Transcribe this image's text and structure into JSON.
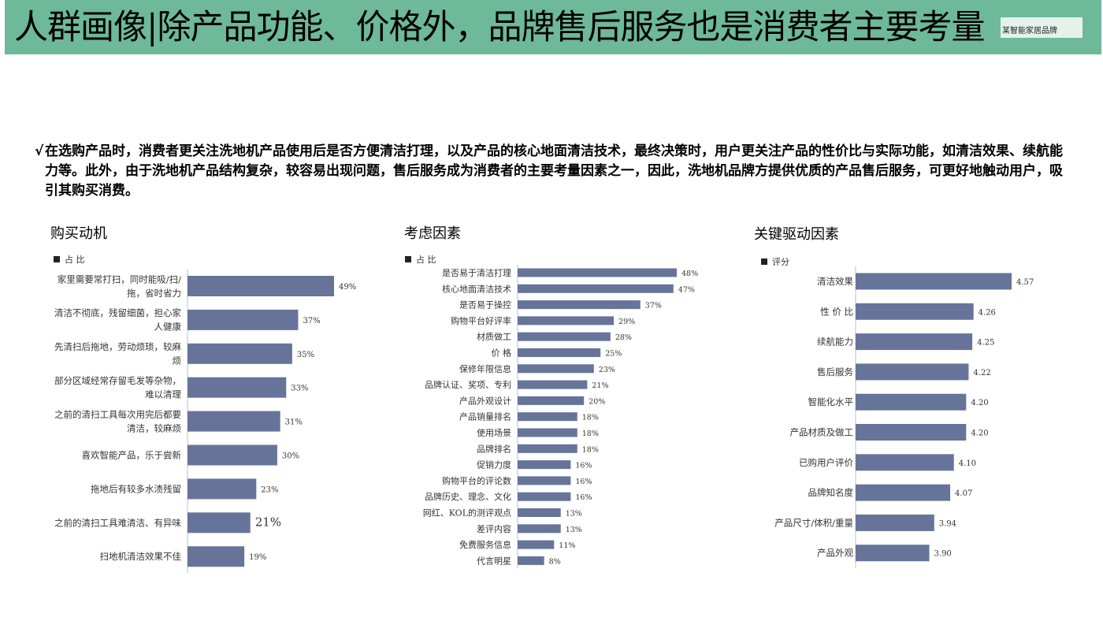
{
  "header": {
    "title": "人群画像|除产品功能、价格外，品牌售后服务也是消费者主要考量",
    "brand": "某智能家居品牌"
  },
  "summary": {
    "tick": "√",
    "text": "在选购产品时，消费者更关注洗地机产品使用后是否方便清洁打理，以及产品的核心地面清洁技术，最终决策时，用户更关注产品的性价比与实际功能，如清洁效果、续航能力等。此外，由于洗地机产品结构复杂，较容易出现问题，售后服务成为消费者的主要考量因素之一，因此，洗地机品牌方提供优质的产品售后服务，可更好地触动用户，吸引其购买消费。"
  },
  "colors": {
    "bar": "#67749a",
    "banner": "#6db99a"
  },
  "chart_data": [
    {
      "type": "bar",
      "orientation": "horizontal",
      "title": "购买动机",
      "legend": "占 比",
      "categories": [
        [
          "家里需要常打扫，同时能吸/扫/",
          "拖，省时省力"
        ],
        [
          "清洁不彻底，残留细菌，担心家",
          "人健康"
        ],
        [
          "先清扫后拖地，劳动烦琐，较麻",
          "烦"
        ],
        [
          "部分区域经常存留毛发等杂物，",
          "难以清理"
        ],
        [
          "之前的清扫工具每次用完后都要",
          "清洁，较麻烦"
        ],
        [
          "喜欢智能产品，乐于尝新"
        ],
        [
          "拖地后有较多水渍残留"
        ],
        [
          "之前的清扫工具难清洁、有异味"
        ],
        [
          "扫地机清洁效果不佳"
        ]
      ],
      "values": [
        49,
        37,
        35,
        33,
        31,
        30,
        23,
        21,
        19
      ],
      "value_labels": [
        "49%",
        "37%",
        "35%",
        "33%",
        "31%",
        "30%",
        "23%",
        "21%",
        "19%"
      ]
    },
    {
      "type": "bar",
      "orientation": "horizontal",
      "title": "考虑因素",
      "legend": "占 比",
      "categories": [
        [
          "是否易于清洁打理"
        ],
        [
          "核心地面清洁技术"
        ],
        [
          "是否易于操控"
        ],
        [
          "购物平台好评率"
        ],
        [
          "材质做工"
        ],
        [
          "价 格"
        ],
        [
          "保修年限信息"
        ],
        [
          "品牌认证、奖项、专利"
        ],
        [
          "产品外观设计"
        ],
        [
          "产品销量排名"
        ],
        [
          "使用场景"
        ],
        [
          "品牌排名"
        ],
        [
          "促销力度"
        ],
        [
          "购物平台的评论数"
        ],
        [
          "品牌历史、理念、文化"
        ],
        [
          "网红、KOL的测评观点"
        ],
        [
          "差评内容"
        ],
        [
          "免费服务信息"
        ],
        [
          "代言明星"
        ]
      ],
      "values": [
        48,
        47,
        37,
        29,
        28,
        25,
        23,
        21,
        20,
        18,
        18,
        18,
        16,
        16,
        16,
        13,
        13,
        11,
        8
      ],
      "value_labels": [
        "48%",
        "47%",
        "37%",
        "29%",
        "28%",
        "25%",
        "23%",
        "21%",
        "20%",
        "18%",
        "18%",
        "18%",
        "16%",
        "16%",
        "16%",
        "13%",
        "13%",
        "11%",
        "8%"
      ]
    },
    {
      "type": "bar",
      "orientation": "horizontal",
      "title": "关键驱动因素",
      "legend": "评分",
      "categories": [
        [
          "清洁效果"
        ],
        [
          "性 价 比"
        ],
        [
          "续航能力"
        ],
        [
          "售后服务"
        ],
        [
          "智能化水平"
        ],
        [
          "产品材质及做工"
        ],
        [
          "已购用户评价"
        ],
        [
          "品牌知名度"
        ],
        [
          "产品尺寸/体积/重量"
        ],
        [
          "产品外观"
        ]
      ],
      "values": [
        4.57,
        4.26,
        4.25,
        4.22,
        4.2,
        4.2,
        4.1,
        4.07,
        3.94,
        3.9
      ],
      "value_labels": [
        "4.57",
        "4.26",
        "4.25",
        "4.22",
        "4.20",
        "4.20",
        "4.10",
        "4.07",
        "3.94",
        "3.90"
      ]
    }
  ]
}
